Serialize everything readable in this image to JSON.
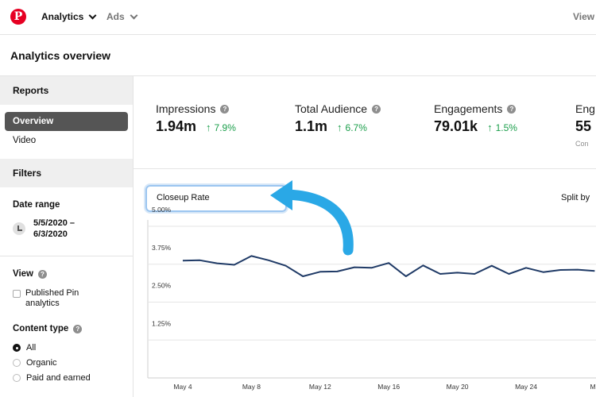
{
  "nav": {
    "logo": "P",
    "analytics": "Analytics",
    "ads": "Ads",
    "view": "View"
  },
  "page": {
    "title": "Analytics overview"
  },
  "sidebar": {
    "reports_heading": "Reports",
    "items": [
      {
        "label": "Overview",
        "active": true
      },
      {
        "label": "Video",
        "active": false
      }
    ],
    "filters_heading": "Filters",
    "date_range_label": "Date range",
    "date_range_line1": "5/5/2020 –",
    "date_range_line2": "6/3/2020",
    "view_label": "View",
    "published_pin_line1": "Published Pin",
    "published_pin_line2": "analytics",
    "content_type_label": "Content type",
    "content_types": [
      {
        "label": "All",
        "selected": true
      },
      {
        "label": "Organic",
        "selected": false
      },
      {
        "label": "Paid and earned",
        "selected": false
      }
    ]
  },
  "metrics": [
    {
      "title": "Impressions",
      "value": "1.94m",
      "change": "7.9%"
    },
    {
      "title": "Total Audience",
      "value": "1.1m",
      "change": "6.7%"
    },
    {
      "title": "Engagements",
      "value": "79.01k",
      "change": "1.5%"
    },
    {
      "title": "Eng",
      "value": "55",
      "sub": "Con"
    }
  ],
  "chart_controls": {
    "metric_select": "Closeup Rate",
    "split_by": "Split by"
  },
  "chart_data": {
    "type": "line",
    "title": "",
    "xlabel": "",
    "ylabel": "",
    "ylim": [
      0,
      5
    ],
    "ytick_values": [
      1.25,
      2.5,
      3.75,
      5.0
    ],
    "yticks": [
      "1.25%",
      "2.50%",
      "3.75%",
      "5.00%"
    ],
    "xtick_values": [
      4,
      8,
      12,
      16,
      20,
      24,
      28
    ],
    "xticks": [
      "May 4",
      "May 8",
      "May 12",
      "May 16",
      "May 20",
      "May 24",
      "Ma"
    ],
    "x": [
      4,
      5,
      6,
      7,
      8,
      9,
      10,
      11,
      12,
      13,
      14,
      15,
      16,
      17,
      18,
      19,
      20,
      21,
      22,
      23,
      24,
      25,
      26,
      27,
      28
    ],
    "series": [
      {
        "values": [
          3.87,
          3.88,
          3.78,
          3.73,
          4.02,
          3.88,
          3.7,
          3.35,
          3.5,
          3.51,
          3.65,
          3.63,
          3.79,
          3.35,
          3.71,
          3.43,
          3.47,
          3.43,
          3.7,
          3.43,
          3.63,
          3.49,
          3.56,
          3.57,
          3.53
        ]
      }
    ],
    "grid": true,
    "line_color": "#1f3a66"
  },
  "annotation": {
    "arrow_color": "#2aa8e6"
  },
  "colors": {
    "accent": "#e60023",
    "positive": "#1a9e4a"
  }
}
